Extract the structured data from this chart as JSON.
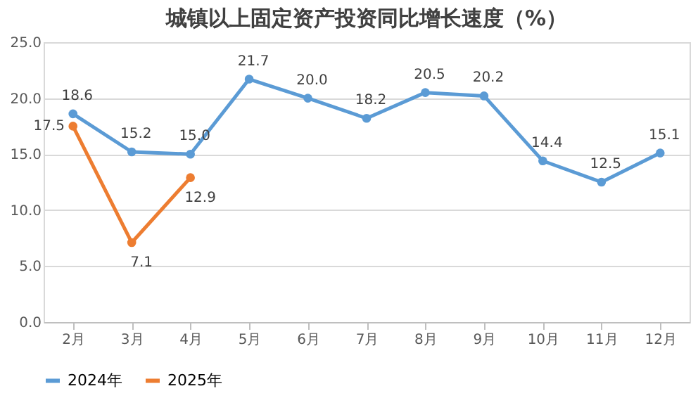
{
  "chart_data": {
    "type": "line",
    "title": "城镇以上固定资产投资同比增长速度（%）",
    "categories": [
      "2月",
      "3月",
      "4月",
      "5月",
      "6月",
      "7月",
      "8月",
      "9月",
      "10月",
      "11月",
      "12月"
    ],
    "series": [
      {
        "name": "2024年",
        "color": "#5b9bd5",
        "values": [
          18.6,
          15.2,
          15.0,
          21.7,
          20.0,
          18.2,
          20.5,
          20.2,
          14.4,
          12.5,
          15.1
        ],
        "value_labels": [
          "18.6",
          "15.2",
          "15.0",
          "21.7",
          "20.0",
          "18.2",
          "20.5",
          "20.2",
          "14.4",
          "12.5",
          "15.1"
        ]
      },
      {
        "name": "2025年",
        "color": "#ed7d31",
        "values": [
          17.5,
          7.1,
          12.9,
          null,
          null,
          null,
          null,
          null,
          null,
          null,
          null
        ],
        "value_labels": [
          "17.5",
          "7.1",
          "12.9",
          null,
          null,
          null,
          null,
          null,
          null,
          null,
          null
        ]
      }
    ],
    "ylim": [
      0,
      25
    ],
    "yticks": [
      {
        "value": 0,
        "label": "0.0"
      },
      {
        "value": 5,
        "label": "5.0"
      },
      {
        "value": 10,
        "label": "10.0"
      },
      {
        "value": 15,
        "label": "15.0"
      },
      {
        "value": 20,
        "label": "20.0"
      },
      {
        "value": 25,
        "label": "25.0"
      }
    ],
    "grid": "y",
    "legend": "bottom",
    "marker": "circle",
    "line_style": "solid"
  }
}
